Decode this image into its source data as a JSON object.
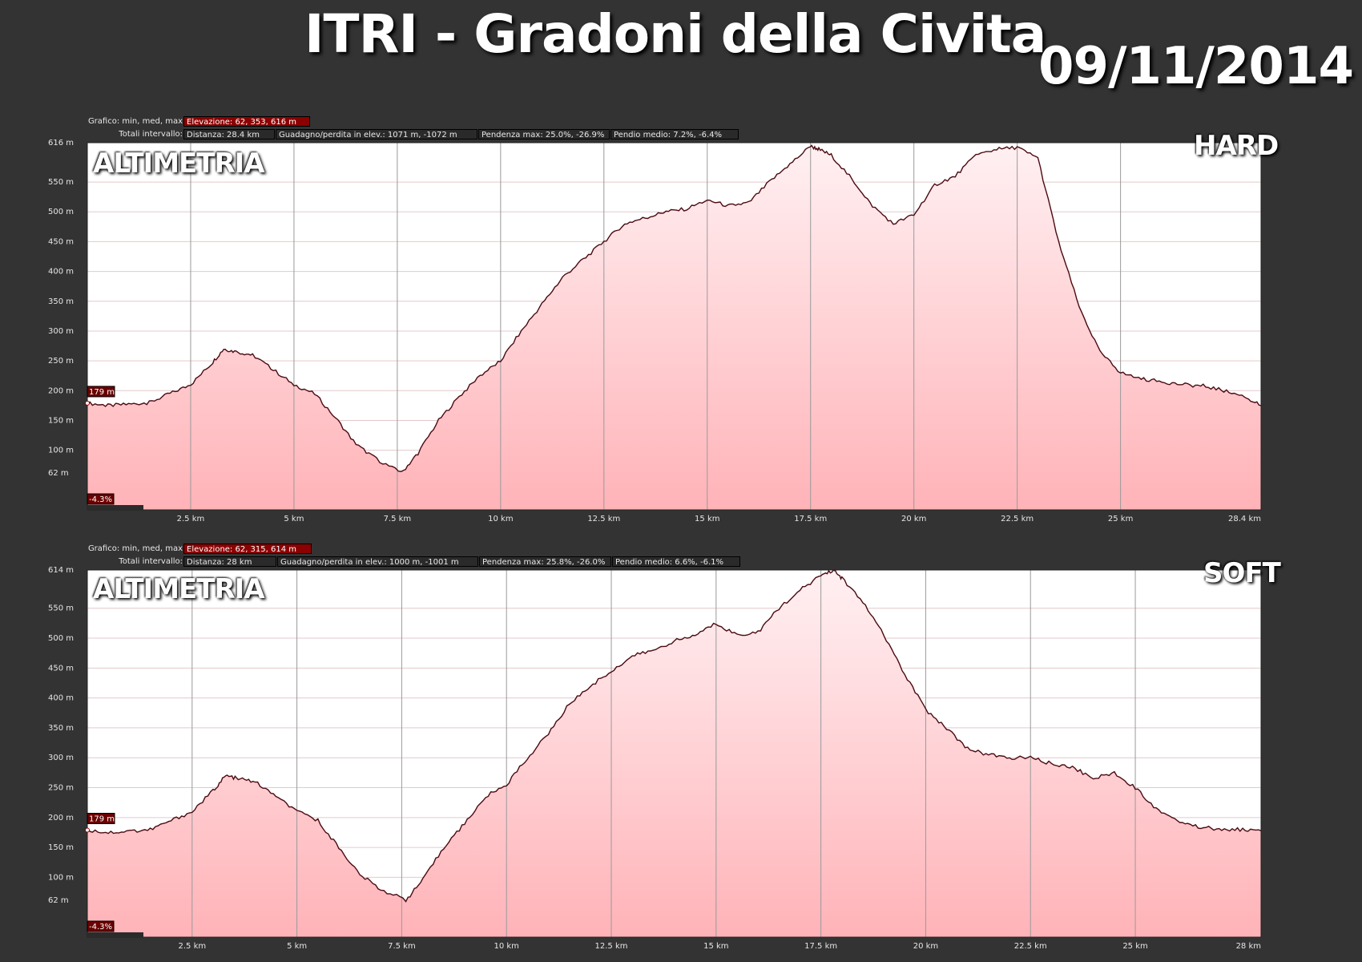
{
  "title": "ITRI - Gradoni della Civita",
  "date": "09/11/2014",
  "chart_data": [
    {
      "type": "area",
      "overlay_left": "ALTIMETRIA",
      "overlay_right": "HARD",
      "info": {
        "label1": "Grafico: min, med, max",
        "elev": "Elevazione: 62, 353, 616 m",
        "label2": "Totali intervallo:",
        "dist": "Distanza: 28.4 km",
        "gain": "Guadagno/perdita in elev.: 1071 m, -1072 m",
        "slope": "Pendenza max: 25.0%, -26.9%",
        "avg": "Pendio medio: 7.2%, -6.4%"
      },
      "y_ticks": [
        {
          "v": 616,
          "label": "616 m"
        },
        {
          "v": 550,
          "label": "550 m"
        },
        {
          "v": 500,
          "label": "500 m"
        },
        {
          "v": 450,
          "label": "450 m"
        },
        {
          "v": 400,
          "label": "400 m"
        },
        {
          "v": 350,
          "label": "350 m"
        },
        {
          "v": 300,
          "label": "300 m"
        },
        {
          "v": 250,
          "label": "250 m"
        },
        {
          "v": 200,
          "label": "200 m"
        },
        {
          "v": 150,
          "label": "150 m"
        },
        {
          "v": 100,
          "label": "100 m"
        },
        {
          "v": 62,
          "label": "62 m"
        }
      ],
      "x_ticks": [
        {
          "v": 2.5,
          "label": "2.5 km"
        },
        {
          "v": 5,
          "label": "5 km"
        },
        {
          "v": 7.5,
          "label": "7.5 km"
        },
        {
          "v": 10,
          "label": "10 km"
        },
        {
          "v": 12.5,
          "label": "12.5 km"
        },
        {
          "v": 15,
          "label": "15 km"
        },
        {
          "v": 17.5,
          "label": "17.5 km"
        },
        {
          "v": 20,
          "label": "20 km"
        },
        {
          "v": 22.5,
          "label": "22.5 km"
        },
        {
          "v": 25,
          "label": "25 km"
        },
        {
          "v": 28.4,
          "label": "28.4 km"
        }
      ],
      "xlim": [
        0,
        28.4
      ],
      "ylim": [
        0,
        616
      ],
      "marker_elev": "179 m",
      "marker_slope": "-4.3%",
      "x": [
        0,
        0.5,
        1,
        1.5,
        2,
        2.5,
        3,
        3.3,
        3.6,
        4,
        4.5,
        5,
        5.5,
        6,
        6.5,
        7,
        7.6,
        8,
        8.5,
        9,
        9.5,
        10,
        10.5,
        11,
        11.5,
        12,
        12.5,
        13,
        13.5,
        14,
        14.5,
        15,
        15.5,
        16,
        16.5,
        17,
        17.5,
        17.7,
        18,
        18.5,
        19,
        19.5,
        20,
        20.5,
        21,
        21.5,
        22,
        22.5,
        23,
        23.5,
        24,
        24.5,
        25,
        25.5,
        26,
        26.5,
        27,
        27.5,
        28,
        28.4
      ],
      "y": [
        179,
        175,
        177,
        180,
        195,
        210,
        245,
        270,
        265,
        260,
        235,
        210,
        195,
        155,
        110,
        85,
        62,
        95,
        150,
        190,
        225,
        250,
        300,
        345,
        390,
        420,
        450,
        480,
        490,
        500,
        505,
        520,
        510,
        515,
        550,
        580,
        610,
        605,
        595,
        555,
        510,
        480,
        495,
        545,
        560,
        595,
        605,
        608,
        590,
        450,
        340,
        265,
        230,
        220,
        215,
        210,
        208,
        200,
        190,
        175
      ]
    },
    {
      "type": "area",
      "overlay_left": "ALTIMETRIA",
      "overlay_right": "SOFT",
      "info": {
        "label1": "Grafico: min, med, max",
        "elev": "Elevazione: 62, 315, 614 m",
        "label2": "Totali intervallo:",
        "dist": "Distanza: 28 km",
        "gain": "Guadagno/perdita in elev.: 1000 m, -1001 m",
        "slope": "Pendenza max: 25.8%, -26.0%",
        "avg": "Pendio medio: 6.6%, -6.1%"
      },
      "y_ticks": [
        {
          "v": 614,
          "label": "614 m"
        },
        {
          "v": 550,
          "label": "550 m"
        },
        {
          "v": 500,
          "label": "500 m"
        },
        {
          "v": 450,
          "label": "450 m"
        },
        {
          "v": 400,
          "label": "400 m"
        },
        {
          "v": 350,
          "label": "350 m"
        },
        {
          "v": 300,
          "label": "300 m"
        },
        {
          "v": 250,
          "label": "250 m"
        },
        {
          "v": 200,
          "label": "200 m"
        },
        {
          "v": 150,
          "label": "150 m"
        },
        {
          "v": 100,
          "label": "100 m"
        },
        {
          "v": 62,
          "label": "62 m"
        }
      ],
      "x_ticks": [
        {
          "v": 2.5,
          "label": "2.5 km"
        },
        {
          "v": 5,
          "label": "5 km"
        },
        {
          "v": 7.5,
          "label": "7.5 km"
        },
        {
          "v": 10,
          "label": "10 km"
        },
        {
          "v": 12.5,
          "label": "12.5 km"
        },
        {
          "v": 15,
          "label": "15 km"
        },
        {
          "v": 17.5,
          "label": "17.5 km"
        },
        {
          "v": 20,
          "label": "20 km"
        },
        {
          "v": 22.5,
          "label": "22.5 km"
        },
        {
          "v": 25,
          "label": "25 km"
        },
        {
          "v": 28,
          "label": "28 km"
        }
      ],
      "xlim": [
        0,
        28
      ],
      "ylim": [
        0,
        614
      ],
      "marker_elev": "179 m",
      "marker_slope": "-4.3%",
      "x": [
        0,
        0.5,
        1,
        1.5,
        2,
        2.5,
        3,
        3.3,
        3.6,
        4,
        4.5,
        5,
        5.5,
        6,
        6.5,
        7,
        7.6,
        8,
        8.5,
        9,
        9.5,
        10,
        10.5,
        11,
        11.5,
        12,
        12.5,
        13,
        13.5,
        14,
        14.5,
        15,
        15.5,
        16,
        16.5,
        17,
        17.5,
        17.8,
        18,
        18.5,
        19,
        19.5,
        20,
        20.5,
        21,
        21.5,
        22,
        22.5,
        23,
        23.5,
        24,
        24.5,
        25,
        25.5,
        26,
        26.5,
        27,
        27.5,
        28
      ],
      "y": [
        179,
        175,
        177,
        180,
        195,
        210,
        245,
        270,
        265,
        260,
        235,
        210,
        195,
        150,
        105,
        80,
        62,
        95,
        150,
        190,
        235,
        255,
        300,
        340,
        390,
        420,
        445,
        470,
        480,
        495,
        505,
        525,
        505,
        510,
        550,
        580,
        605,
        614,
        600,
        560,
        505,
        440,
        380,
        350,
        315,
        305,
        300,
        300,
        290,
        285,
        265,
        275,
        250,
        215,
        195,
        185,
        180,
        180,
        178
      ]
    }
  ]
}
